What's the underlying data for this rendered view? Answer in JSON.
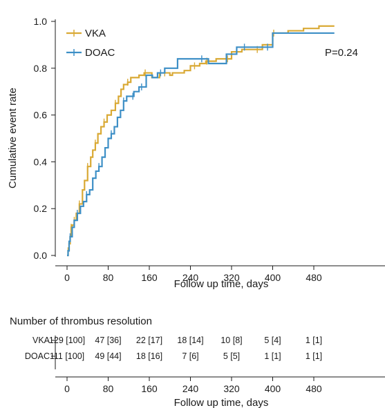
{
  "chart_data": {
    "type": "line",
    "step": true,
    "ylabel": "Cumulative event rate",
    "xlabel": "Follow up time, days",
    "xlim": [
      0,
      520
    ],
    "ylim": [
      0,
      1.0
    ],
    "xticks": [
      0,
      80,
      160,
      240,
      320,
      400,
      480
    ],
    "yticks": [
      "0.0",
      "0.2",
      "0.4",
      "0.6",
      "0.8",
      "1.0"
    ],
    "annotation": "P=0.24",
    "legend_position": "top-left",
    "series": [
      {
        "name": "VKA",
        "color": "#d9a934",
        "points": [
          [
            0,
            0
          ],
          [
            2,
            0.02
          ],
          [
            4,
            0.05
          ],
          [
            6,
            0.08
          ],
          [
            8,
            0.12
          ],
          [
            10,
            0.13
          ],
          [
            14,
            0.15
          ],
          [
            18,
            0.18
          ],
          [
            24,
            0.22
          ],
          [
            30,
            0.28
          ],
          [
            34,
            0.32
          ],
          [
            40,
            0.38
          ],
          [
            46,
            0.42
          ],
          [
            50,
            0.45
          ],
          [
            55,
            0.48
          ],
          [
            60,
            0.52
          ],
          [
            66,
            0.55
          ],
          [
            72,
            0.57
          ],
          [
            78,
            0.6
          ],
          [
            86,
            0.62
          ],
          [
            94,
            0.65
          ],
          [
            100,
            0.68
          ],
          [
            105,
            0.71
          ],
          [
            110,
            0.73
          ],
          [
            118,
            0.74
          ],
          [
            124,
            0.76
          ],
          [
            140,
            0.77
          ],
          [
            150,
            0.78
          ],
          [
            165,
            0.76
          ],
          [
            180,
            0.78
          ],
          [
            200,
            0.77
          ],
          [
            205,
            0.78
          ],
          [
            228,
            0.79
          ],
          [
            240,
            0.81
          ],
          [
            258,
            0.82
          ],
          [
            270,
            0.83
          ],
          [
            290,
            0.84
          ],
          [
            320,
            0.87
          ],
          [
            340,
            0.88
          ],
          [
            380,
            0.9
          ],
          [
            400,
            0.95
          ],
          [
            430,
            0.96
          ],
          [
            460,
            0.97
          ],
          [
            490,
            0.98
          ],
          [
            520,
            0.98
          ]
        ],
        "censor_x": [
          2,
          8,
          14,
          24,
          40,
          55,
          72,
          94,
          118,
          152,
          190,
          248,
          272,
          312,
          370,
          402
        ]
      },
      {
        "name": "DOAC",
        "color": "#3d8fc6",
        "points": [
          [
            0,
            0
          ],
          [
            2,
            0.02
          ],
          [
            4,
            0.06
          ],
          [
            6,
            0.08
          ],
          [
            10,
            0.12
          ],
          [
            14,
            0.15
          ],
          [
            20,
            0.18
          ],
          [
            26,
            0.21
          ],
          [
            32,
            0.23
          ],
          [
            38,
            0.26
          ],
          [
            44,
            0.28
          ],
          [
            50,
            0.33
          ],
          [
            56,
            0.36
          ],
          [
            62,
            0.38
          ],
          [
            68,
            0.42
          ],
          [
            74,
            0.46
          ],
          [
            80,
            0.5
          ],
          [
            86,
            0.52
          ],
          [
            92,
            0.55
          ],
          [
            98,
            0.59
          ],
          [
            104,
            0.62
          ],
          [
            110,
            0.66
          ],
          [
            116,
            0.68
          ],
          [
            122,
            0.68
          ],
          [
            130,
            0.7
          ],
          [
            140,
            0.72
          ],
          [
            152,
            0.72
          ],
          [
            154,
            0.77
          ],
          [
            166,
            0.76
          ],
          [
            176,
            0.78
          ],
          [
            190,
            0.8
          ],
          [
            210,
            0.8
          ],
          [
            215,
            0.84
          ],
          [
            270,
            0.84
          ],
          [
            275,
            0.82
          ],
          [
            300,
            0.82
          ],
          [
            310,
            0.86
          ],
          [
            330,
            0.89
          ],
          [
            400,
            0.95
          ],
          [
            520,
            0.95
          ]
        ],
        "censor_x": [
          6,
          20,
          38,
          62,
          86,
          110,
          128,
          145,
          182,
          262,
          345,
          390
        ]
      }
    ]
  },
  "risk_table": {
    "title": "Number of thrombus resolution",
    "xlabel": "Follow up time, days",
    "rows": [
      {
        "label": "VKA",
        "values": [
          "129 [100]",
          "47 [36]",
          "22 [17]",
          "18 [14]",
          "10 [8]",
          "5 [4]",
          "1 [1]"
        ]
      },
      {
        "label": "DOAC",
        "values": [
          "111 [100]",
          "49 [44]",
          "18 [16]",
          "7 [6]",
          "5 [5]",
          "1 [1]",
          "1 [1]"
        ]
      }
    ]
  }
}
